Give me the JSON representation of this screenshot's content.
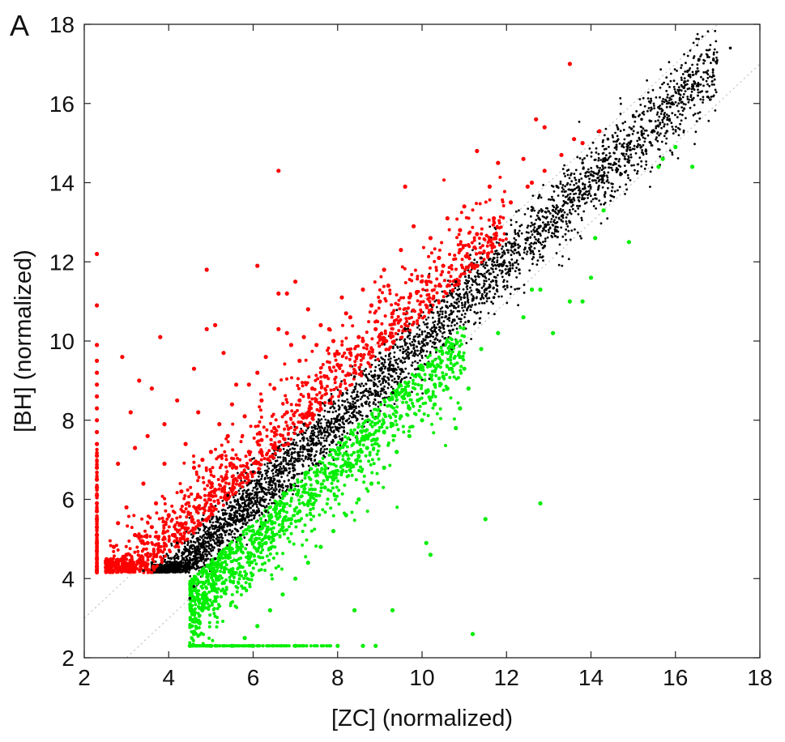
{
  "panel_label": "A",
  "chart_data": {
    "type": "scatter",
    "xlabel": "[ZC] (normalized)",
    "ylabel": "[BH] (normalized)",
    "xlim": [
      2,
      18
    ],
    "ylim": [
      2,
      18
    ],
    "x_ticks": [
      2,
      4,
      6,
      8,
      10,
      12,
      14,
      16,
      18
    ],
    "y_ticks": [
      2,
      4,
      6,
      8,
      10,
      12,
      14,
      16,
      18
    ],
    "grid": false,
    "legend": "none",
    "reference_lines": [
      {
        "slope": 1,
        "intercept": 1,
        "style": "dotted",
        "color": "#c0c0c0"
      },
      {
        "slope": 1,
        "intercept": -1,
        "style": "dotted",
        "color": "#c0c0c0"
      }
    ],
    "series_colors": {
      "up": "#ff0000",
      "unchanged": "#000000",
      "down": "#00ee00"
    },
    "series": [
      {
        "key": "up",
        "color": "#ff0000",
        "points": [
          [
            2.3,
            12.2
          ],
          [
            2.3,
            10.9
          ],
          [
            2.3,
            9.9
          ],
          [
            2.3,
            9.5
          ],
          [
            2.3,
            9.2
          ],
          [
            2.3,
            8.9
          ],
          [
            2.3,
            8.6
          ],
          [
            2.3,
            8.3
          ],
          [
            2.3,
            8.0
          ],
          [
            2.3,
            7.7
          ],
          [
            2.3,
            7.4
          ],
          [
            2.3,
            7.1
          ],
          [
            2.3,
            6.8
          ],
          [
            2.3,
            6.5
          ],
          [
            2.3,
            6.3
          ],
          [
            2.3,
            6.1
          ],
          [
            2.3,
            5.9
          ],
          [
            2.3,
            5.7
          ],
          [
            2.3,
            5.5
          ],
          [
            2.3,
            5.3
          ],
          [
            2.3,
            5.1
          ],
          [
            2.3,
            4.9
          ],
          [
            2.3,
            4.7
          ],
          [
            2.3,
            4.5
          ],
          [
            2.3,
            4.3
          ],
          [
            2.3,
            4.2
          ],
          [
            2.9,
            9.6
          ],
          [
            3.3,
            9.0
          ],
          [
            3.8,
            10.1
          ],
          [
            3.6,
            8.8
          ],
          [
            3.1,
            8.2
          ],
          [
            3.5,
            7.6
          ],
          [
            3.2,
            7.3
          ],
          [
            2.8,
            6.9
          ],
          [
            3.9,
            7.9
          ],
          [
            4.2,
            8.5
          ],
          [
            4.6,
            9.3
          ],
          [
            4.9,
            10.3
          ],
          [
            5.1,
            10.4
          ],
          [
            4.9,
            11.8
          ],
          [
            6.1,
            11.9
          ],
          [
            6.6,
            14.3
          ],
          [
            6.6,
            11.2
          ],
          [
            6.8,
            11.2
          ],
          [
            7.0,
            11.5
          ],
          [
            6.6,
            10.3
          ],
          [
            6.8,
            10.2
          ],
          [
            5.3,
            9.7
          ],
          [
            4.7,
            8.2
          ],
          [
            5.6,
            8.9
          ],
          [
            6.1,
            9.2
          ],
          [
            7.3,
            10.8
          ],
          [
            7.6,
            10.4
          ],
          [
            8.1,
            11.1
          ],
          [
            7.9,
            10.0
          ],
          [
            8.6,
            11.3
          ],
          [
            9.1,
            11.8
          ],
          [
            9.6,
            13.9
          ],
          [
            9.8,
            12.9
          ],
          [
            9.5,
            12.3
          ],
          [
            10.2,
            12.6
          ],
          [
            10.6,
            13.1
          ],
          [
            11.0,
            13.4
          ],
          [
            11.3,
            14.8
          ],
          [
            11.8,
            14.5
          ],
          [
            12.4,
            14.6
          ],
          [
            12.7,
            15.6
          ],
          [
            12.9,
            15.4
          ],
          [
            13.5,
            17.0
          ],
          [
            14.2,
            15.3
          ],
          [
            13.8,
            15.0
          ],
          [
            12.6,
            14.0
          ],
          [
            11.6,
            13.9
          ],
          [
            10.9,
            12.8
          ],
          [
            10.4,
            12.1
          ],
          [
            9.2,
            11.4
          ],
          [
            8.3,
            10.6
          ],
          [
            3.0,
            5.8
          ],
          [
            3.4,
            6.4
          ],
          [
            3.7,
            5.9
          ],
          [
            2.8,
            5.4
          ],
          [
            3.2,
            5.1
          ],
          [
            3.6,
            5.3
          ],
          [
            2.7,
            4.8
          ],
          [
            3.0,
            4.6
          ],
          [
            3.5,
            4.9
          ],
          [
            4.0,
            5.6
          ],
          [
            4.3,
            6.2
          ],
          [
            4.6,
            6.8
          ],
          [
            5.0,
            7.2
          ],
          [
            5.4,
            7.6
          ],
          [
            5.8,
            8.1
          ],
          [
            6.2,
            8.5
          ],
          [
            6.5,
            8.8
          ],
          [
            7.1,
            9.5
          ],
          [
            7.5,
            9.9
          ],
          [
            7.8,
            10.3
          ],
          [
            8.2,
            10.7
          ],
          [
            8.5,
            10.1
          ],
          [
            8.8,
            10.9
          ],
          [
            9.0,
            11.0
          ],
          [
            3.9,
            6.9
          ],
          [
            4.4,
            7.4
          ],
          [
            4.8,
            7.0
          ],
          [
            5.2,
            7.9
          ],
          [
            5.5,
            8.4
          ],
          [
            5.9,
            8.9
          ],
          [
            6.3,
            9.6
          ],
          [
            6.9,
            9.9
          ],
          [
            7.2,
            10.1
          ],
          [
            2.6,
            4.4
          ],
          [
            2.9,
            4.3
          ],
          [
            3.3,
            4.4
          ],
          [
            3.8,
            4.7
          ],
          [
            4.1,
            5.1
          ],
          [
            4.4,
            5.4
          ],
          [
            4.7,
            5.8
          ],
          [
            5.0,
            6.1
          ],
          [
            5.3,
            6.5
          ],
          [
            5.6,
            6.8
          ],
          [
            5.9,
            7.2
          ],
          [
            6.2,
            7.5
          ],
          [
            6.5,
            7.8
          ],
          [
            6.8,
            8.2
          ],
          [
            7.1,
            8.5
          ],
          [
            7.4,
            8.8
          ],
          [
            7.7,
            9.1
          ],
          [
            8.0,
            9.4
          ],
          [
            8.3,
            9.7
          ],
          [
            8.6,
            10.0
          ],
          [
            8.9,
            10.3
          ],
          [
            9.3,
            10.7
          ],
          [
            9.7,
            11.1
          ],
          [
            10.1,
            11.5
          ],
          [
            10.5,
            11.9
          ],
          [
            10.9,
            12.3
          ],
          [
            11.3,
            12.7
          ],
          [
            11.7,
            13.1
          ],
          [
            12.1,
            13.5
          ],
          [
            12.5,
            13.9
          ],
          [
            12.9,
            14.3
          ],
          [
            13.3,
            14.7
          ],
          [
            13.6,
            15.1
          ]
        ]
      },
      {
        "key": "unchanged",
        "color": "#000000",
        "points": [
          [
            17.3,
            17.4
          ],
          [
            16.9,
            17.1
          ],
          [
            16.5,
            16.8
          ],
          [
            16.2,
            16.4
          ],
          [
            15.9,
            16.0
          ],
          [
            15.6,
            15.9
          ],
          [
            15.2,
            15.6
          ],
          [
            14.9,
            15.2
          ],
          [
            14.6,
            14.9
          ],
          [
            14.3,
            14.6
          ],
          [
            14.0,
            14.2
          ],
          [
            13.7,
            13.9
          ],
          [
            13.4,
            13.5
          ],
          [
            13.1,
            13.3
          ],
          [
            12.8,
            12.9
          ],
          [
            12.5,
            12.6
          ],
          [
            12.2,
            12.3
          ],
          [
            11.9,
            11.9
          ],
          [
            11.6,
            11.7
          ],
          [
            11.3,
            11.3
          ],
          [
            11.0,
            11.1
          ],
          [
            10.7,
            10.7
          ],
          [
            10.4,
            10.5
          ],
          [
            10.1,
            10.1
          ],
          [
            9.8,
            9.9
          ],
          [
            9.5,
            9.5
          ],
          [
            9.2,
            9.3
          ],
          [
            8.9,
            8.9
          ],
          [
            8.6,
            8.7
          ],
          [
            8.3,
            8.3
          ],
          [
            8.0,
            8.1
          ],
          [
            7.7,
            7.7
          ],
          [
            7.4,
            7.5
          ],
          [
            7.1,
            7.1
          ],
          [
            6.8,
            6.9
          ],
          [
            6.5,
            6.5
          ],
          [
            6.2,
            6.3
          ],
          [
            5.9,
            5.9
          ],
          [
            5.6,
            5.7
          ],
          [
            5.3,
            5.3
          ],
          [
            5.0,
            5.1
          ],
          [
            4.7,
            4.7
          ],
          [
            4.5,
            4.4
          ],
          [
            4.2,
            4.2
          ],
          [
            3.8,
            4.2
          ],
          [
            3.4,
            4.2
          ],
          [
            16.4,
            16.1
          ],
          [
            15.8,
            15.3
          ],
          [
            15.3,
            14.8
          ],
          [
            14.7,
            14.2
          ],
          [
            14.1,
            13.7
          ],
          [
            13.5,
            13.0
          ],
          [
            12.9,
            12.4
          ],
          [
            12.3,
            11.8
          ],
          [
            11.7,
            11.1
          ],
          [
            11.1,
            10.5
          ],
          [
            10.5,
            9.9
          ],
          [
            9.9,
            9.3
          ],
          [
            9.3,
            8.7
          ],
          [
            8.7,
            8.1
          ],
          [
            8.1,
            7.5
          ],
          [
            7.5,
            6.9
          ],
          [
            6.9,
            6.3
          ],
          [
            6.3,
            5.7
          ],
          [
            5.7,
            5.1
          ],
          [
            5.1,
            4.5
          ],
          [
            4.6,
            3.8
          ],
          [
            4.5,
            3.5
          ],
          [
            15.0,
            15.7
          ],
          [
            14.4,
            15.1
          ],
          [
            13.8,
            14.5
          ],
          [
            13.2,
            13.9
          ],
          [
            12.6,
            13.3
          ],
          [
            12.0,
            12.7
          ],
          [
            11.4,
            12.1
          ],
          [
            10.8,
            11.5
          ],
          [
            10.2,
            10.9
          ],
          [
            9.6,
            10.3
          ],
          [
            9.0,
            9.7
          ],
          [
            8.4,
            9.1
          ],
          [
            7.8,
            8.5
          ],
          [
            7.2,
            7.9
          ],
          [
            6.6,
            7.3
          ],
          [
            6.0,
            6.7
          ],
          [
            5.4,
            6.1
          ],
          [
            4.8,
            5.5
          ],
          [
            4.2,
            4.9
          ],
          [
            3.6,
            4.4
          ]
        ]
      },
      {
        "key": "down",
        "color": "#00ee00",
        "points": [
          [
            16.4,
            14.4
          ],
          [
            16.0,
            14.9
          ],
          [
            15.7,
            14.6
          ],
          [
            15.6,
            14.4
          ],
          [
            14.9,
            12.5
          ],
          [
            14.1,
            12.6
          ],
          [
            14.3,
            13.3
          ],
          [
            14.0,
            11.6
          ],
          [
            13.8,
            11.0
          ],
          [
            13.5,
            11.0
          ],
          [
            13.1,
            10.2
          ],
          [
            12.8,
            11.3
          ],
          [
            12.6,
            11.3
          ],
          [
            12.4,
            10.6
          ],
          [
            12.8,
            5.9
          ],
          [
            11.5,
            5.5
          ],
          [
            11.2,
            2.6
          ],
          [
            10.2,
            4.6
          ],
          [
            10.1,
            4.9
          ],
          [
            9.3,
            3.2
          ],
          [
            8.4,
            3.2
          ],
          [
            11.0,
            9.3
          ],
          [
            11.1,
            8.8
          ],
          [
            10.9,
            8.3
          ],
          [
            10.8,
            7.8
          ],
          [
            11.8,
            10.2
          ],
          [
            11.4,
            9.8
          ],
          [
            10.6,
            8.8
          ],
          [
            10.3,
            8.4
          ],
          [
            10.0,
            8.0
          ],
          [
            9.7,
            7.6
          ],
          [
            9.4,
            7.2
          ],
          [
            9.1,
            6.8
          ],
          [
            8.8,
            6.4
          ],
          [
            8.5,
            6.0
          ],
          [
            8.2,
            5.6
          ],
          [
            7.9,
            5.2
          ],
          [
            7.6,
            4.8
          ],
          [
            7.3,
            4.4
          ],
          [
            7.0,
            4.0
          ],
          [
            6.7,
            3.6
          ],
          [
            6.4,
            3.2
          ],
          [
            6.1,
            2.8
          ],
          [
            5.8,
            2.5
          ],
          [
            5.5,
            2.3
          ],
          [
            5.0,
            2.3
          ],
          [
            4.5,
            2.3
          ],
          [
            6.0,
            2.3
          ],
          [
            7.0,
            2.3
          ],
          [
            8.0,
            2.3
          ],
          [
            8.6,
            2.3
          ],
          [
            8.9,
            2.3
          ],
          [
            4.6,
            2.6
          ],
          [
            4.7,
            2.9
          ],
          [
            4.8,
            3.2
          ],
          [
            4.9,
            3.5
          ],
          [
            5.1,
            3.7
          ],
          [
            5.3,
            3.9
          ],
          [
            5.5,
            4.1
          ],
          [
            5.7,
            4.3
          ],
          [
            5.9,
            4.5
          ],
          [
            6.1,
            4.7
          ],
          [
            6.3,
            4.9
          ],
          [
            6.5,
            5.1
          ],
          [
            6.7,
            5.3
          ],
          [
            6.9,
            5.5
          ],
          [
            7.1,
            5.7
          ],
          [
            7.3,
            5.9
          ],
          [
            7.5,
            6.1
          ],
          [
            7.7,
            6.3
          ],
          [
            7.9,
            6.5
          ],
          [
            8.1,
            6.7
          ],
          [
            8.3,
            6.9
          ],
          [
            8.5,
            7.1
          ],
          [
            8.7,
            7.3
          ],
          [
            8.9,
            7.5
          ],
          [
            9.1,
            7.7
          ],
          [
            9.3,
            7.9
          ],
          [
            9.5,
            8.1
          ],
          [
            9.7,
            8.3
          ],
          [
            9.9,
            8.5
          ],
          [
            10.1,
            8.7
          ],
          [
            10.3,
            8.9
          ],
          [
            10.5,
            9.1
          ],
          [
            10.7,
            9.3
          ],
          [
            10.9,
            9.6
          ]
        ]
      }
    ]
  }
}
